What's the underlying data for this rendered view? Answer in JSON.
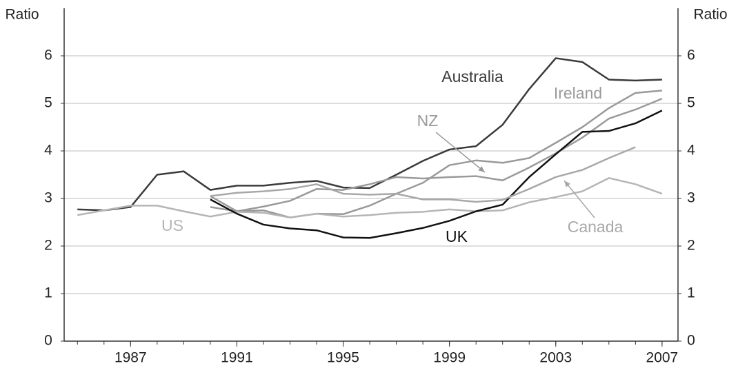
{
  "chart_data": {
    "type": "line",
    "y_label_left": "Ratio",
    "y_label_right": "Ratio",
    "x": [
      1985,
      1986,
      1987,
      1988,
      1989,
      1990,
      1991,
      1992,
      1993,
      1994,
      1995,
      1996,
      1997,
      1998,
      1999,
      2000,
      2001,
      2002,
      2003,
      2004,
      2005,
      2006,
      2007
    ],
    "series": [
      {
        "name": "Australia",
        "color": "#3a3a3a",
        "values": [
          2.77,
          2.75,
          2.82,
          3.5,
          3.57,
          3.18,
          3.27,
          3.27,
          3.33,
          3.37,
          3.23,
          3.22,
          3.5,
          3.79,
          4.03,
          4.1,
          4.55,
          5.3,
          5.95,
          5.87,
          5.5,
          5.48,
          5.5
        ]
      },
      {
        "name": "Ireland",
        "color": "#9a9a9a",
        "values": [
          null,
          null,
          null,
          null,
          null,
          2.82,
          2.73,
          2.83,
          2.95,
          3.2,
          3.18,
          3.3,
          3.45,
          3.42,
          3.45,
          3.47,
          3.38,
          3.65,
          3.95,
          4.28,
          4.68,
          4.87,
          5.1
        ]
      },
      {
        "name": "NZ",
        "color": "#999999",
        "values": [
          null,
          null,
          null,
          null,
          null,
          3.05,
          2.73,
          2.75,
          2.6,
          2.68,
          2.67,
          2.85,
          3.1,
          3.33,
          3.7,
          3.8,
          3.75,
          3.85,
          4.17,
          4.5,
          4.9,
          5.22,
          5.27
        ]
      },
      {
        "name": "US",
        "color": "#b5b5b5",
        "values": [
          2.65,
          2.75,
          2.85,
          2.85,
          2.73,
          2.62,
          2.72,
          2.7,
          2.6,
          2.68,
          2.62,
          2.65,
          2.7,
          2.72,
          2.77,
          2.73,
          2.75,
          2.92,
          3.03,
          3.15,
          3.43,
          3.3,
          3.1
        ]
      },
      {
        "name": "UK",
        "color": "#111111",
        "values": [
          null,
          null,
          null,
          null,
          null,
          2.98,
          2.68,
          2.45,
          2.37,
          2.33,
          2.18,
          2.17,
          2.27,
          2.38,
          2.53,
          2.73,
          2.87,
          3.45,
          3.93,
          4.4,
          4.42,
          4.58,
          4.85
        ]
      },
      {
        "name": "Canada",
        "color": "#a8a8a8",
        "values": [
          null,
          null,
          null,
          null,
          null,
          3.05,
          3.12,
          3.15,
          3.2,
          3.3,
          3.1,
          3.08,
          3.1,
          2.98,
          2.98,
          2.93,
          2.97,
          3.2,
          3.45,
          3.6,
          3.85,
          4.08,
          null
        ]
      }
    ],
    "xlim": [
      1984.5,
      2007.6
    ],
    "xticks": [
      1987,
      1991,
      1995,
      1999,
      2003,
      2007
    ],
    "ylim": [
      0,
      7
    ],
    "yticks": [
      0,
      1,
      2,
      3,
      4,
      5,
      6
    ],
    "grid": true
  }
}
